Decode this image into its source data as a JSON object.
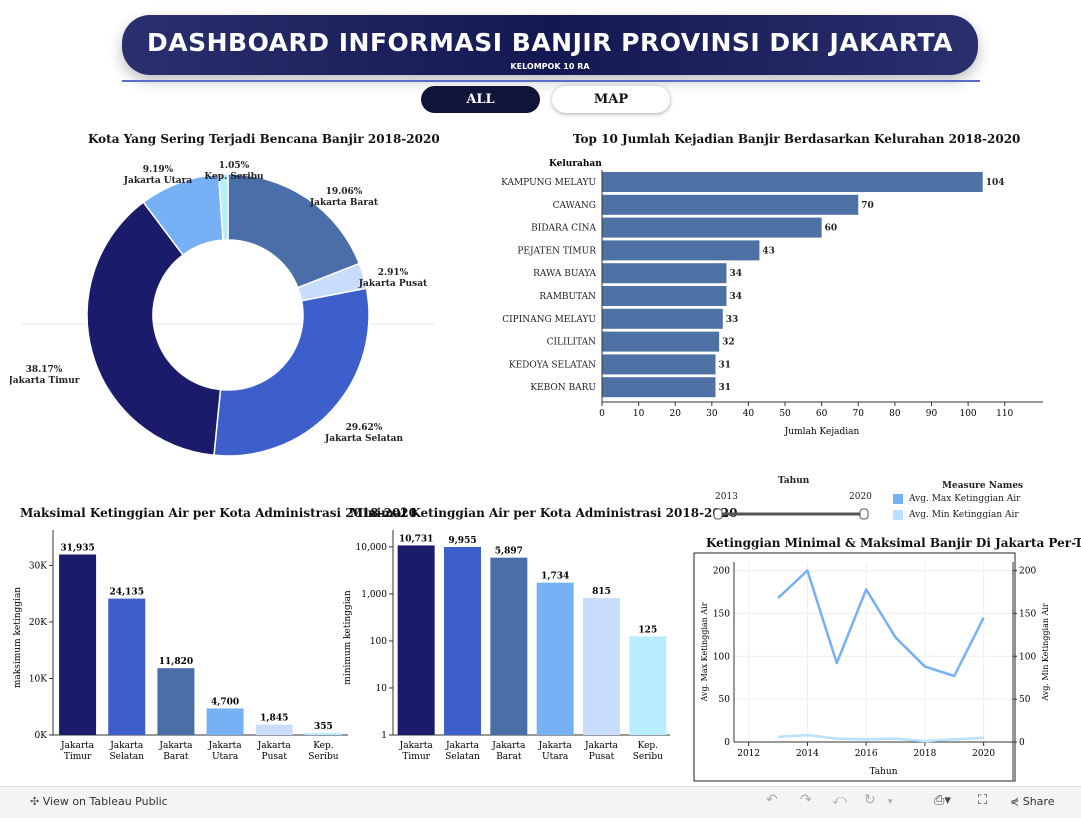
{
  "header": {
    "title": "DASHBOARD INFORMASI BANJIR PROVINSI DKI JAKARTA",
    "subtitle": "KELOMPOK 10 RA"
  },
  "nav": {
    "all_label": "ALL",
    "map_label": "MAP"
  },
  "colors": {
    "navy": "#1b1b6b",
    "royal": "#3d5fcc",
    "steel": "#4a6fa8",
    "sky": "#76b0f5",
    "pale": "#c8dcfb",
    "ice": "#b8ecff",
    "bar_blue": "#4e72a6"
  },
  "footer": {
    "view_label": "View on Tableau Public",
    "share_label": "Share"
  },
  "chart_data": [
    {
      "id": "donut",
      "type": "pie",
      "title": "Kota Yang Sering Terjadi Bencana Banjir 2018-2020",
      "slices": [
        {
          "label": "Jakarta Barat",
          "pct_label": "19.06%",
          "value": 19.06,
          "color": "#4a6fa8"
        },
        {
          "label": "Jakarta Pusat",
          "pct_label": "2.91%",
          "value": 2.91,
          "color": "#c8dcfb"
        },
        {
          "label": "Jakarta Selatan",
          "pct_label": "29.62%",
          "value": 29.62,
          "color": "#3d5fcc"
        },
        {
          "label": "Jakarta Timur",
          "pct_label": "38.17%",
          "value": 38.17,
          "color": "#1b1b6b"
        },
        {
          "label": "Jakarta Utara",
          "pct_label": "9.19%",
          "value": 9.19,
          "color": "#76b0f5"
        },
        {
          "label": "Kep. Seribu",
          "pct_label": "1.05%",
          "value": 1.05,
          "color": "#b8ecff"
        }
      ]
    },
    {
      "id": "top10",
      "type": "bar",
      "orientation": "horizontal",
      "title": "Top 10 Jumlah Kejadian Banjir Berdasarkan Kelurahan 2018-2020",
      "ylabel": "Kelurahan",
      "xlabel": "Jumlah Kejadian",
      "categories": [
        "KAMPUNG MELAYU",
        "CAWANG",
        "BIDARA CINA",
        "PEJATEN TIMUR",
        "RAWA BUAYA",
        "RAMBUTAN",
        "CIPINANG MELAYU",
        "CILILITAN",
        "KEDOYA SELATAN",
        "KEBON BARU"
      ],
      "values": [
        104,
        70,
        60,
        43,
        34,
        34,
        33,
        32,
        31,
        31
      ],
      "xticks": [
        "0",
        "10",
        "20",
        "30",
        "40",
        "50",
        "60",
        "70",
        "80",
        "90",
        "100",
        "110"
      ],
      "xlim": [
        0,
        115
      ]
    },
    {
      "id": "maxbar",
      "type": "bar",
      "title": "Maksimal Ketinggian Air per Kota Administrasi 2018-2020",
      "ylabel": "maksimum ketinggian",
      "categories": [
        [
          "Jakarta",
          "Timur"
        ],
        [
          "Jakarta",
          "Selatan"
        ],
        [
          "Jakarta",
          "Barat"
        ],
        [
          "Jakarta",
          "Utara"
        ],
        [
          "Jakarta",
          "Pusat"
        ],
        [
          "Kep.",
          "Seribu"
        ]
      ],
      "values": [
        31935,
        24135,
        11820,
        4700,
        1845,
        355
      ],
      "value_labels": [
        "31,935",
        "24,135",
        "11,820",
        "4,700",
        "1,845",
        "355"
      ],
      "yticks": [
        "0K",
        "10K",
        "20K",
        "30K"
      ],
      "ylim": [
        0,
        34500
      ],
      "colors": [
        "#1b1b6b",
        "#3d5fcc",
        "#4a6fa8",
        "#76b0f5",
        "#c8dcfb",
        "#b8ecff"
      ]
    },
    {
      "id": "minbar",
      "type": "bar",
      "title": "Minimal Ketinggian Air per Kota Administrasi 2018-2020",
      "ylabel": "minimum ketinggian",
      "yscale": "log",
      "categories": [
        [
          "Jakarta",
          "Timur"
        ],
        [
          "Jakarta",
          "Selatan"
        ],
        [
          "Jakarta",
          "Barat"
        ],
        [
          "Jakarta",
          "Utara"
        ],
        [
          "Jakarta",
          "Pusat"
        ],
        [
          "Kep.",
          "Seribu"
        ]
      ],
      "values": [
        10731,
        9955,
        5897,
        1734,
        815,
        125
      ],
      "value_labels": [
        "10,731",
        "9,955",
        "5,897",
        "1,734",
        "815",
        "125"
      ],
      "yticks": [
        "1",
        "10",
        "100",
        "1,000",
        "10,000"
      ],
      "ylim": [
        1,
        14000
      ],
      "colors": [
        "#1b1b6b",
        "#3d5fcc",
        "#4a6fa8",
        "#76b0f5",
        "#c8dcfb",
        "#b8ecff"
      ]
    },
    {
      "id": "yearly",
      "type": "line",
      "title": "Ketinggian Minimal & Maksimal Banjir Di Jakarta Per-Tahun",
      "xlabel": "Tahun",
      "ylabel_left": "Avg. Max Ketinggian Air",
      "ylabel_right": "Avg. Min Ketinggian Air",
      "xticks": [
        "2012",
        "2014",
        "2016",
        "2018",
        "2020"
      ],
      "xlim": [
        2011.5,
        2021
      ],
      "yticks_left": [
        "0",
        "50",
        "100",
        "150",
        "200"
      ],
      "yticks_right": [
        "0",
        "50",
        "100",
        "150",
        "200"
      ],
      "ylim": [
        0,
        210
      ],
      "series": [
        {
          "name": "Avg. Max Ketinggian Air",
          "color": "#76b0f5",
          "x": [
            2013,
            2014,
            2015,
            2016,
            2017,
            2018,
            2019,
            2020
          ],
          "y": [
            168,
            200,
            92,
            178,
            122,
            88,
            77,
            145
          ]
        },
        {
          "name": "Avg. Min Ketinggian Air",
          "color": "#b8e2ff",
          "x": [
            2013,
            2014,
            2015,
            2016,
            2017,
            2018,
            2019,
            2020
          ],
          "y": [
            6,
            8,
            4,
            3,
            4,
            1,
            3,
            5
          ]
        }
      ]
    }
  ],
  "filter": {
    "title": "Tahun",
    "min_label": "2013",
    "max_label": "2020"
  },
  "legend": {
    "title": "Measure Names",
    "items": [
      {
        "label": "Avg. Max Ketinggian Air",
        "color": "#76b0f5"
      },
      {
        "label": "Avg. Min Ketinggian Air",
        "color": "#b8e2ff"
      }
    ]
  }
}
